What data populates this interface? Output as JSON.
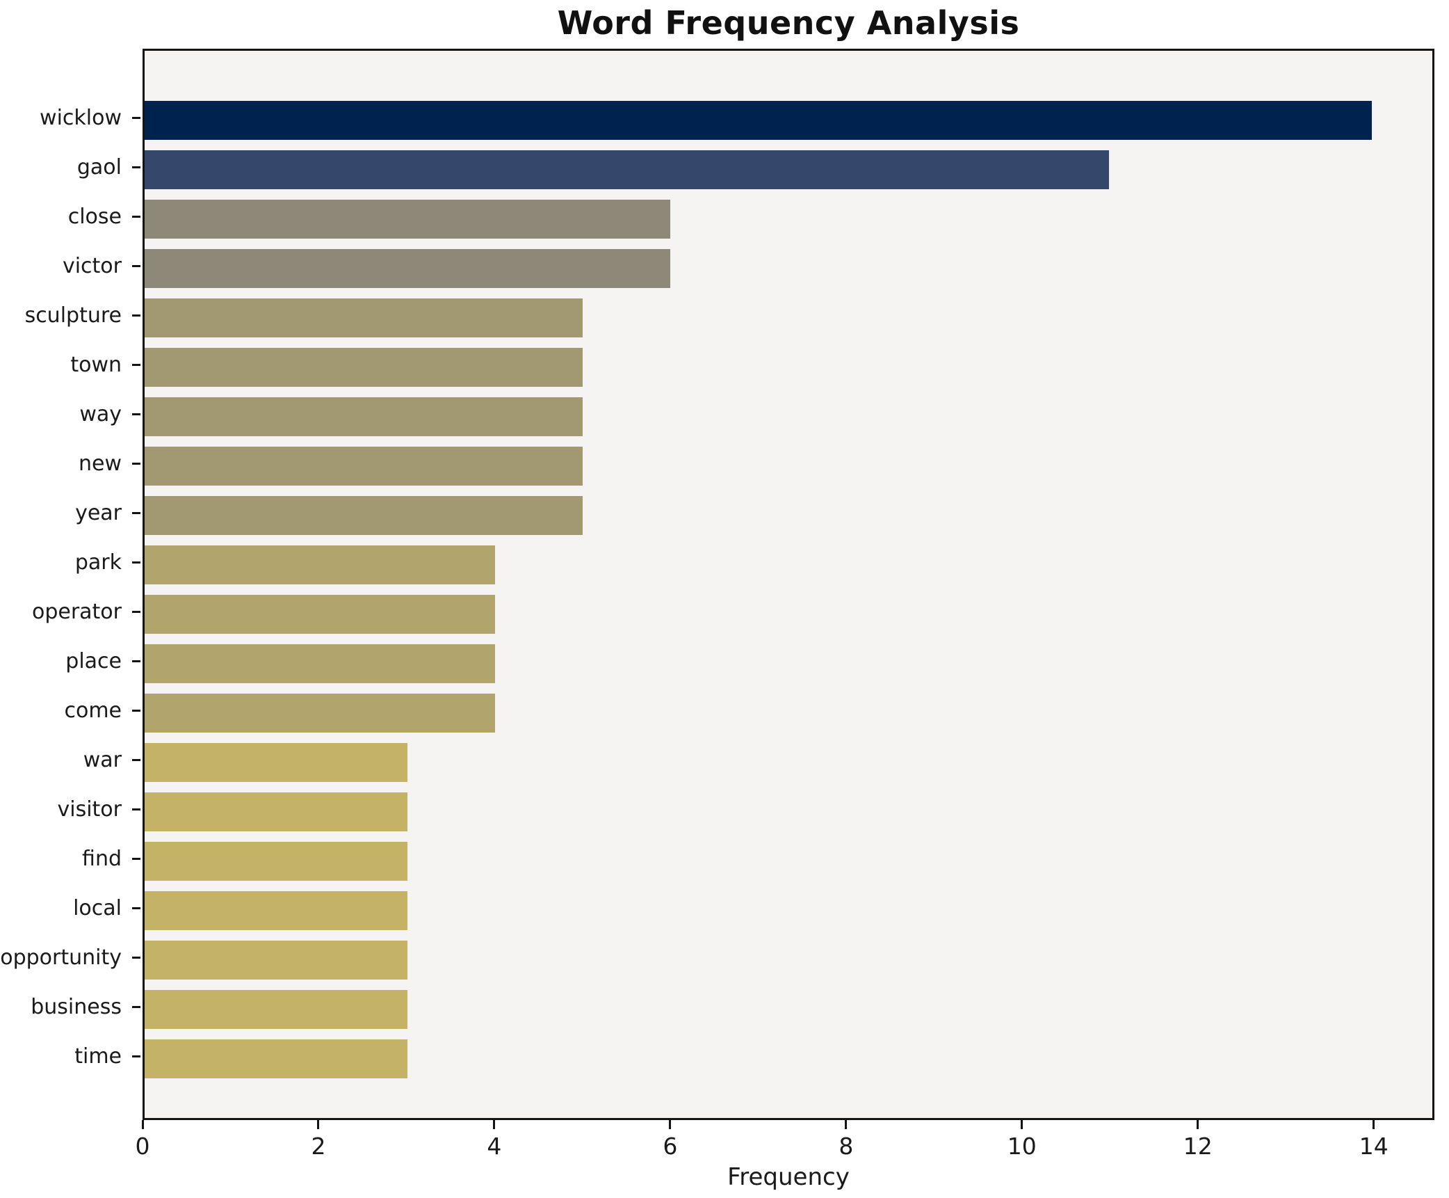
{
  "chart_data": {
    "type": "bar",
    "orientation": "horizontal",
    "title": "Word Frequency Analysis",
    "xlabel": "Frequency",
    "ylabel": "",
    "xlim": [
      0,
      14.69
    ],
    "xticks": [
      0,
      2,
      4,
      6,
      8,
      10,
      12,
      14
    ],
    "grid": false,
    "legend": "none",
    "categories": [
      "wicklow",
      "gaol",
      "close",
      "victor",
      "sculpture",
      "town",
      "way",
      "new",
      "year",
      "park",
      "operator",
      "place",
      "come",
      "war",
      "visitor",
      "find",
      "local",
      "opportunity",
      "business",
      "time"
    ],
    "values": [
      14,
      11,
      6,
      6,
      5,
      5,
      5,
      5,
      5,
      4,
      4,
      4,
      4,
      3,
      3,
      3,
      3,
      3,
      3,
      3
    ],
    "bar_colors": [
      "#00224e",
      "#35486c",
      "#8d8877",
      "#8d8877",
      "#a29872",
      "#a29872",
      "#a29872",
      "#a29872",
      "#a29872",
      "#b1a46c",
      "#b1a46c",
      "#b1a46c",
      "#b1a46c",
      "#c4b266",
      "#c4b266",
      "#c4b266",
      "#c4b266",
      "#c4b266",
      "#c4b266",
      "#c4b266"
    ],
    "colors": {
      "figure_bg": "#ffffff",
      "plot_bg": "#f5f4f2",
      "spine": "#141414",
      "text": "#1a1a1a"
    }
  }
}
